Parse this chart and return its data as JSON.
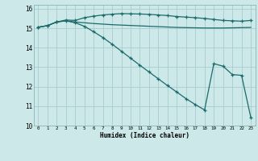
{
  "xlabel": "Humidex (Indice chaleur)",
  "bg_color": "#cce8e8",
  "grid_color": "#aacccc",
  "line_color": "#1a6b6b",
  "xlim": [
    -0.5,
    23.5
  ],
  "ylim": [
    10,
    16.2
  ],
  "xticks": [
    0,
    1,
    2,
    3,
    4,
    5,
    6,
    7,
    8,
    9,
    10,
    11,
    12,
    13,
    14,
    15,
    16,
    17,
    18,
    19,
    20,
    21,
    22,
    23
  ],
  "yticks": [
    10,
    11,
    12,
    13,
    14,
    15,
    16
  ],
  "line1_x": [
    0,
    1,
    2,
    3,
    4,
    5,
    6,
    7,
    8,
    9,
    10,
    11,
    12,
    13,
    14,
    15,
    16,
    17,
    18,
    19,
    20,
    21,
    22,
    23
  ],
  "line1_y": [
    15.05,
    15.13,
    15.32,
    15.42,
    15.4,
    15.54,
    15.62,
    15.68,
    15.72,
    15.75,
    15.74,
    15.73,
    15.71,
    15.68,
    15.65,
    15.6,
    15.57,
    15.54,
    15.5,
    15.45,
    15.4,
    15.38,
    15.36,
    15.4
  ],
  "line2_x": [
    0,
    1,
    2,
    3,
    4,
    5,
    6,
    7,
    8,
    9,
    10,
    11,
    12,
    13,
    14,
    15,
    16,
    17,
    18,
    19,
    20,
    21,
    22,
    23
  ],
  "line2_y": [
    15.05,
    15.13,
    15.32,
    15.38,
    15.32,
    15.28,
    15.24,
    15.21,
    15.18,
    15.16,
    15.14,
    15.12,
    15.1,
    15.08,
    15.06,
    15.04,
    15.03,
    15.02,
    15.01,
    15.01,
    15.01,
    15.02,
    15.03,
    15.04
  ],
  "line3_x": [
    0,
    1,
    2,
    3,
    4,
    5,
    6,
    7,
    8,
    9,
    10,
    11,
    12,
    13,
    14,
    15,
    16,
    17,
    18,
    19,
    20,
    21,
    22,
    23
  ],
  "line3_y": [
    15.05,
    15.13,
    15.32,
    15.38,
    15.28,
    15.1,
    14.82,
    14.52,
    14.18,
    13.82,
    13.46,
    13.1,
    12.75,
    12.4,
    12.05,
    11.72,
    11.38,
    11.08,
    10.8,
    13.18,
    13.05,
    12.62,
    12.58,
    10.42
  ]
}
